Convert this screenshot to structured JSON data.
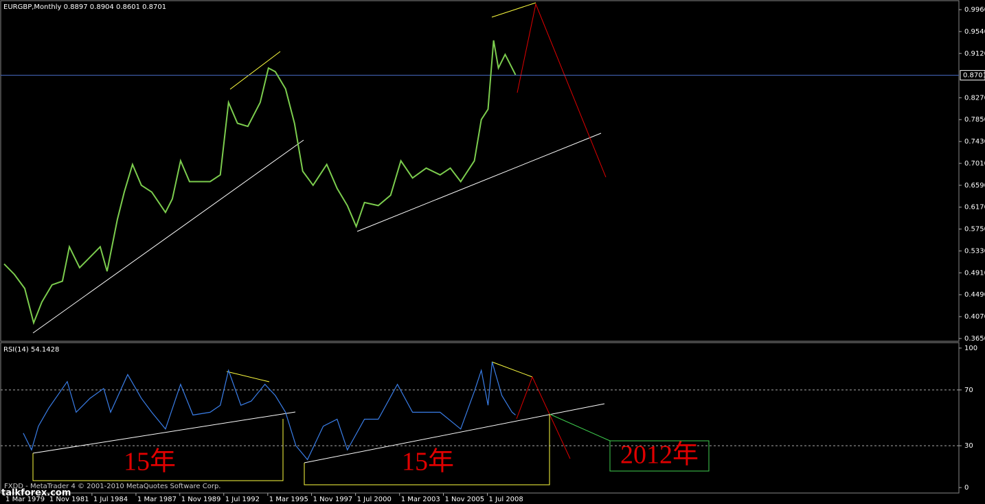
{
  "chart_data": [
    {
      "type": "line",
      "title": "EURGBP,Monthly  0.8897 0.8904 0.8601 0.8701",
      "color": "#7ccd4e",
      "x": [
        1979.17,
        1979.79,
        1980.42,
        1980.96,
        1981.46,
        1982.08,
        1982.71,
        1983.13,
        1983.75,
        1984.38,
        1985.0,
        1985.42,
        1986.04,
        1986.46,
        1986.96,
        1987.5,
        1988.13,
        1988.96,
        1989.38,
        1989.88,
        1990.42,
        1991.04,
        1991.67,
        1992.29,
        1992.79,
        1993.33,
        1993.96,
        1994.71,
        1995.21,
        1995.63,
        1996.25,
        1996.79,
        1997.29,
        1997.92,
        1998.75,
        1999.38,
        2000.0,
        2000.54,
        2001.04,
        2001.88,
        2002.63,
        2003.25,
        2003.96,
        2004.79,
        2005.63,
        2006.25,
        2006.88,
        2007.71,
        2008.13,
        2008.54,
        2008.88,
        2009.17,
        2009.58,
        2010.0,
        2010.21
      ],
      "values": [
        0.508,
        0.488,
        0.461,
        0.395,
        0.435,
        0.468,
        0.475,
        0.541,
        0.501,
        0.521,
        0.541,
        0.494,
        0.593,
        0.646,
        0.699,
        0.659,
        0.646,
        0.607,
        0.633,
        0.706,
        0.666,
        0.666,
        0.666,
        0.679,
        0.818,
        0.778,
        0.772,
        0.818,
        0.884,
        0.877,
        0.844,
        0.778,
        0.686,
        0.659,
        0.699,
        0.653,
        0.62,
        0.58,
        0.626,
        0.62,
        0.64,
        0.706,
        0.673,
        0.692,
        0.679,
        0.692,
        0.666,
        0.706,
        0.785,
        0.805,
        0.937,
        0.884,
        0.91,
        0.884,
        0.871
      ],
      "xlim": [
        1978.96,
        2037.12
      ],
      "ylim": [
        0.3597,
        1.0132
      ],
      "yticks": [
        {
          "value": 0.996,
          "label": "0.9960"
        },
        {
          "value": 0.954,
          "label": "0.9540"
        },
        {
          "value": 0.912,
          "label": "0.9120"
        },
        {
          "value": 0.827,
          "label": "0.8270"
        },
        {
          "value": 0.785,
          "label": "0.7850"
        },
        {
          "value": 0.743,
          "label": "0.7430"
        },
        {
          "value": 0.701,
          "label": "0.7010"
        },
        {
          "value": 0.659,
          "label": "0.6590"
        },
        {
          "value": 0.617,
          "label": "0.6170"
        },
        {
          "value": 0.575,
          "label": "0.5750"
        },
        {
          "value": 0.533,
          "label": "0.5330"
        },
        {
          "value": 0.491,
          "label": "0.4910"
        },
        {
          "value": 0.449,
          "label": "0.4490"
        },
        {
          "value": 0.407,
          "label": "0.4070"
        },
        {
          "value": 0.365,
          "label": "0.3650"
        }
      ],
      "current_price": {
        "value": 0.8701,
        "label": "0.8701"
      }
    },
    {
      "type": "line",
      "title": "RSI(14) 54.1428",
      "color": "#3a7ee8",
      "x": [
        1980.33,
        1980.83,
        1981.25,
        1981.88,
        1983.0,
        1983.54,
        1984.38,
        1985.21,
        1985.63,
        1986.67,
        1987.5,
        1988.13,
        1988.96,
        1989.88,
        1990.63,
        1991.67,
        1992.29,
        1992.79,
        1993.54,
        1994.17,
        1995.0,
        1995.63,
        1996.25,
        1996.88,
        1997.58,
        1998.54,
        1999.38,
        2000.0,
        2001.04,
        2001.88,
        2003.04,
        2003.96,
        2004.79,
        2005.63,
        2006.88,
        2007.71,
        2008.13,
        2008.54,
        2008.79,
        2009.38,
        2010.0,
        2010.21
      ],
      "values": [
        39,
        27,
        44,
        57,
        76,
        54,
        64,
        71,
        54,
        81,
        64,
        54,
        42,
        74,
        52,
        54,
        59,
        84,
        59,
        62,
        74,
        66,
        54,
        30,
        20,
        44,
        49,
        27,
        49,
        49,
        74,
        54,
        54,
        54,
        42,
        69,
        84,
        59,
        90,
        66,
        54,
        52
      ],
      "xlim": [
        1978.96,
        2037.12
      ],
      "ylim": [
        -3.9,
        103.9
      ],
      "yticks": [
        100,
        70,
        30,
        0
      ],
      "levels": [
        70,
        30
      ],
      "xticks": [
        {
          "value": 1979.17,
          "label": "1 Mar 1979"
        },
        {
          "value": 1981.83,
          "label": "1 Nov 1981"
        },
        {
          "value": 1984.5,
          "label": "1 Jul 1984"
        },
        {
          "value": 1987.17,
          "label": "1 Mar 1987"
        },
        {
          "value": 1989.83,
          "label": "1 Nov 1989"
        },
        {
          "value": 1992.5,
          "label": "1 Jul 1992"
        },
        {
          "value": 1995.17,
          "label": "1 Mar 1995"
        },
        {
          "value": 1997.83,
          "label": "1 Nov 1997"
        },
        {
          "value": 2000.5,
          "label": "1 Jul 2000"
        },
        {
          "value": 2003.17,
          "label": "1 Mar 2003"
        },
        {
          "value": 2005.83,
          "label": "1 Nov 2005"
        },
        {
          "value": 2008.5,
          "label": "1 Jul 2008"
        }
      ],
      "annotations": [
        "15年",
        "15年",
        "2012年"
      ],
      "footer": "FXDD - MetaTrader 4 © 2001-2010 MetaQuotes Software Corp.",
      "watermark": "talkforex.com"
    }
  ]
}
